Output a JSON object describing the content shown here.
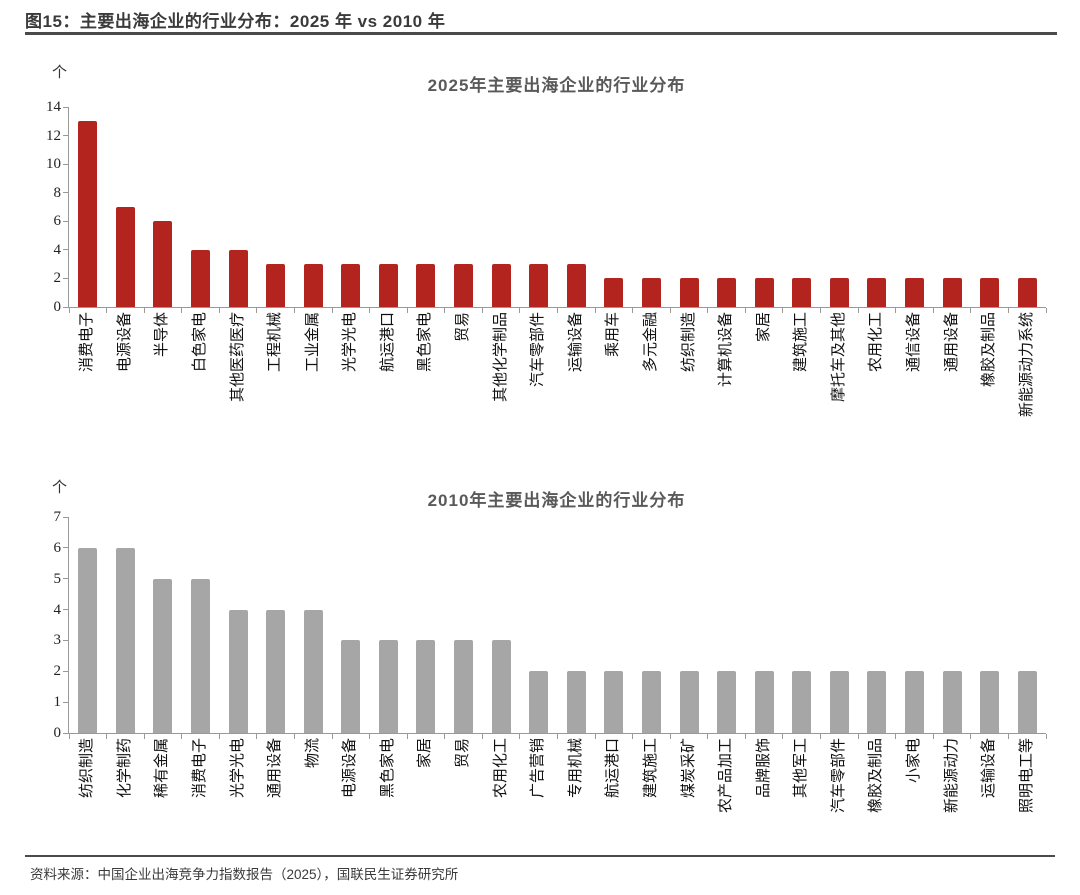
{
  "header": {
    "title": "图15：主要出海企业的行业分布：2025 年 vs 2010 年"
  },
  "chart_data": [
    {
      "type": "bar",
      "title": "2025年主要出海企业的行业分布",
      "unit_label": "个",
      "xlabel": "",
      "ylabel": "个",
      "bar_color": "#B4241F",
      "ylim": [
        0,
        14
      ],
      "yticks": [
        0,
        2,
        4,
        6,
        8,
        10,
        12,
        14
      ],
      "grid": false,
      "legend": "none",
      "categories": [
        "消费电子",
        "电源设备",
        "半导体",
        "白色家电",
        "其他医药医疗",
        "工程机械",
        "工业金属",
        "光学光电",
        "航运港口",
        "黑色家电",
        "贸易",
        "其他化学制品",
        "汽车零部件",
        "运输设备",
        "乘用车",
        "多元金融",
        "纺织制造",
        "计算机设备",
        "家居",
        "建筑施工",
        "摩托车及其他",
        "农用化工",
        "通信设备",
        "通用设备",
        "橡胶及制品",
        "新能源动力系统"
      ],
      "values": [
        13,
        7,
        6,
        4,
        4,
        3,
        3,
        3,
        3,
        3,
        3,
        3,
        3,
        3,
        2,
        2,
        2,
        2,
        2,
        2,
        2,
        2,
        2,
        2,
        2,
        2
      ]
    },
    {
      "type": "bar",
      "title": "2010年主要出海企业的行业分布",
      "unit_label": "个",
      "xlabel": "",
      "ylabel": "个",
      "bar_color": "#A6A6A6",
      "ylim": [
        0,
        7
      ],
      "yticks": [
        0,
        1,
        2,
        3,
        4,
        5,
        6,
        7
      ],
      "grid": false,
      "legend": "none",
      "categories": [
        "纺织制造",
        "化学制药",
        "稀有金属",
        "消费电子",
        "光学光电",
        "通用设备",
        "物流",
        "电源设备",
        "黑色家电",
        "家居",
        "贸易",
        "农用化工",
        "广告营销",
        "专用机械",
        "航运港口",
        "建筑施工",
        "煤炭采矿",
        "农产品加工",
        "品牌服饰",
        "其他军工",
        "汽车零部件",
        "橡胶及制品",
        "小家电",
        "新能源动力",
        "运输设备",
        "照明电工等"
      ],
      "values": [
        6,
        6,
        5,
        5,
        4,
        4,
        4,
        3,
        3,
        3,
        3,
        3,
        2,
        2,
        2,
        2,
        2,
        2,
        2,
        2,
        2,
        2,
        2,
        2,
        2,
        2
      ]
    }
  ],
  "footer": {
    "source": "资料来源：中国企业出海竞争力指数报告（2025），国联民生证券研究所"
  },
  "colors": {
    "bar_red": "#B4241F",
    "bar_gray": "#A6A6A6",
    "axis_gray": "#999999",
    "title_gray": "#595959",
    "rule_dark": "#4A4A4A"
  }
}
